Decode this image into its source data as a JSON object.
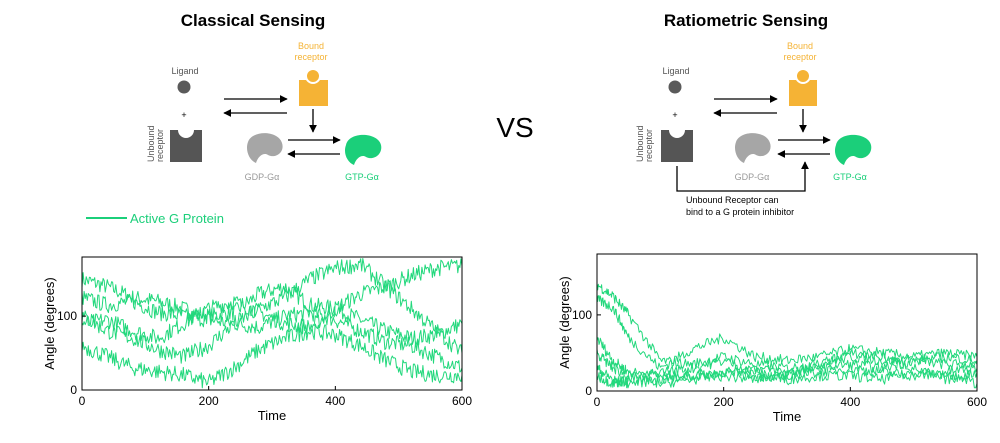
{
  "left_panel": {
    "title": "Classical Sensing",
    "ligand_label": "Ligand",
    "plus": "+",
    "unbound_label_1": "Unbound",
    "unbound_label_2": "receptor",
    "bound_label_1": "Bound",
    "bound_label_2": "receptor",
    "gdp_label": "GDP-Gα",
    "gtp_label": "GTP-Gα"
  },
  "right_panel": {
    "title": "Ratiometric Sensing",
    "ligand_label": "Ligand",
    "plus": "+",
    "unbound_label_1": "Unbound",
    "unbound_label_2": "receptor",
    "bound_label_1": "Bound",
    "bound_label_2": "receptor",
    "gdp_label": "GDP-Gα",
    "gtp_label": "GTP-Gα",
    "inhibitor_note_1": "Unbound Receptor can",
    "inhibitor_note_2": "bind to a G protein inhibitor"
  },
  "vs_label": "VS",
  "legend": {
    "label": "Active G Protein"
  },
  "colors": {
    "green": "#1bcf7a",
    "trace_green": "#22d87c",
    "gold": "#f5b335",
    "dark_grey": "#555555",
    "light_grey": "#a6a6a6"
  },
  "chart_data": [
    {
      "type": "line",
      "name": "classical",
      "title": "",
      "xlabel": "Time",
      "ylabel": "Angle (degrees)",
      "xlim": [
        0,
        600
      ],
      "ylim": [
        0,
        180
      ],
      "xticks": [
        "0",
        "200",
        "400",
        "600"
      ],
      "yticks": [
        "0",
        "100"
      ],
      "series": [
        {
          "name": "trace-1",
          "x": [
            0,
            40,
            80,
            120,
            160,
            200,
            240,
            280,
            320,
            360,
            400,
            440,
            480,
            520,
            560,
            600
          ],
          "values": [
            150,
            140,
            125,
            120,
            110,
            100,
            105,
            130,
            140,
            115,
            110,
            95,
            80,
            70,
            75,
            90
          ]
        },
        {
          "name": "trace-2",
          "x": [
            0,
            40,
            80,
            120,
            160,
            200,
            240,
            280,
            320,
            360,
            400,
            440,
            480,
            520,
            560,
            600
          ],
          "values": [
            125,
            115,
            120,
            105,
            100,
            95,
            90,
            85,
            100,
            105,
            95,
            80,
            65,
            60,
            45,
            30
          ]
        },
        {
          "name": "trace-3",
          "x": [
            0,
            40,
            80,
            120,
            160,
            200,
            240,
            280,
            320,
            360,
            400,
            440,
            480,
            520,
            560,
            600
          ],
          "values": [
            90,
            95,
            80,
            70,
            90,
            110,
            120,
            105,
            90,
            85,
            110,
            130,
            140,
            155,
            165,
            168
          ]
        },
        {
          "name": "trace-4",
          "x": [
            0,
            40,
            80,
            120,
            160,
            200,
            240,
            280,
            320,
            360,
            400,
            440,
            480,
            520,
            560,
            600
          ],
          "values": [
            60,
            45,
            30,
            25,
            20,
            10,
            30,
            55,
            70,
            80,
            75,
            60,
            40,
            25,
            20,
            20
          ]
        },
        {
          "name": "trace-5",
          "x": [
            0,
            40,
            80,
            120,
            160,
            200,
            240,
            280,
            320,
            360,
            400,
            440,
            480,
            520,
            560,
            600
          ],
          "values": [
            100,
            80,
            70,
            55,
            45,
            60,
            90,
            110,
            125,
            150,
            165,
            170,
            140,
            110,
            80,
            50
          ]
        }
      ]
    },
    {
      "type": "line",
      "name": "ratiometric",
      "title": "",
      "xlabel": "Time",
      "ylabel": "Angle (degrees)",
      "xlim": [
        0,
        600
      ],
      "ylim": [
        0,
        180
      ],
      "xticks": [
        "0",
        "200",
        "400",
        "600"
      ],
      "yticks": [
        "0",
        "100"
      ],
      "series": [
        {
          "name": "trace-1",
          "x": [
            0,
            25,
            50,
            100,
            150,
            200,
            250,
            300,
            350,
            400,
            450,
            500,
            550,
            600
          ],
          "values": [
            140,
            125,
            100,
            40,
            35,
            45,
            35,
            30,
            35,
            45,
            40,
            40,
            35,
            35
          ]
        },
        {
          "name": "trace-2",
          "x": [
            0,
            25,
            50,
            100,
            150,
            200,
            250,
            300,
            350,
            400,
            450,
            500,
            550,
            600
          ],
          "values": [
            120,
            110,
            70,
            30,
            55,
            70,
            45,
            40,
            45,
            55,
            50,
            45,
            50,
            45
          ]
        },
        {
          "name": "trace-3",
          "x": [
            0,
            25,
            50,
            100,
            150,
            200,
            250,
            300,
            350,
            400,
            450,
            500,
            550,
            600
          ],
          "values": [
            70,
            40,
            25,
            20,
            20,
            25,
            30,
            25,
            30,
            35,
            30,
            40,
            45,
            40
          ]
        },
        {
          "name": "trace-4",
          "x": [
            0,
            25,
            50,
            100,
            150,
            200,
            250,
            300,
            350,
            400,
            450,
            500,
            550,
            600
          ],
          "values": [
            30,
            15,
            10,
            15,
            20,
            25,
            20,
            20,
            25,
            30,
            25,
            20,
            25,
            30
          ]
        },
        {
          "name": "trace-5",
          "x": [
            0,
            25,
            50,
            100,
            150,
            200,
            250,
            300,
            350,
            400,
            450,
            500,
            550,
            600
          ],
          "values": [
            20,
            10,
            15,
            25,
            30,
            40,
            25,
            15,
            20,
            20,
            15,
            25,
            20,
            10
          ]
        },
        {
          "name": "trace-6",
          "x": [
            0,
            25,
            50,
            100,
            150,
            200,
            250,
            300,
            350,
            400,
            450,
            500,
            550,
            600
          ],
          "values": [
            50,
            30,
            20,
            10,
            15,
            20,
            15,
            20,
            35,
            50,
            45,
            30,
            15,
            25
          ]
        }
      ]
    }
  ]
}
